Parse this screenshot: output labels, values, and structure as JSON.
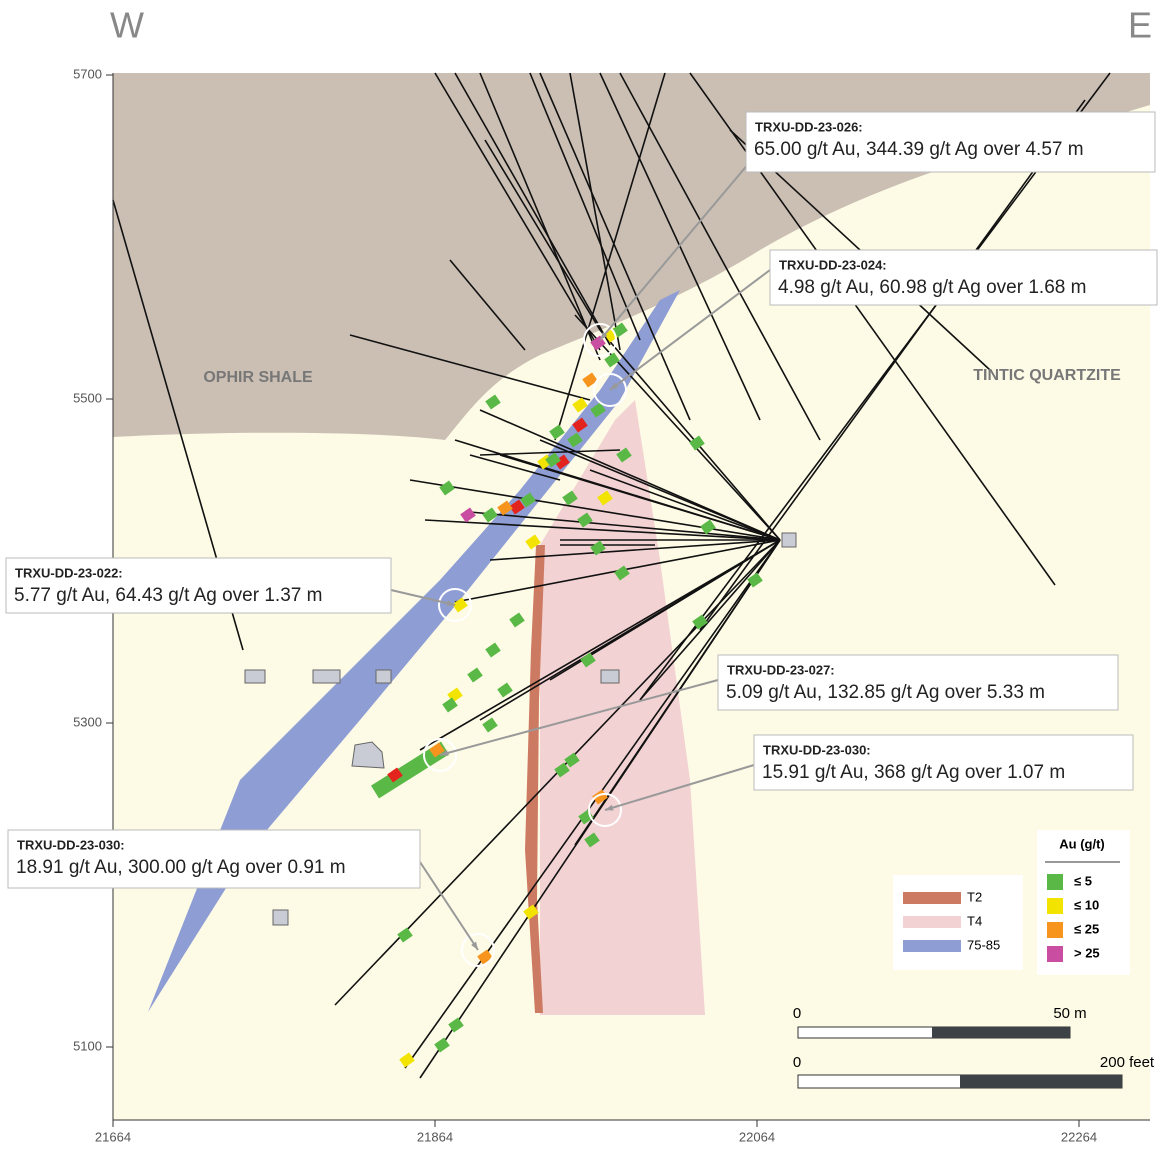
{
  "header": {
    "west": "W",
    "east": "E"
  },
  "axes": {
    "yticks": [
      5700,
      5500,
      5300,
      5100
    ],
    "xticks": [
      21664,
      21864,
      22064,
      22264
    ]
  },
  "units": [
    {
      "label": "OPHIR SHALE"
    },
    {
      "label": "TINTIC QUARTZITE"
    }
  ],
  "callouts": [
    {
      "hole": "TRXU-DD-23-026:",
      "result": "65.00 g/t Au, 344.39 g/t Ag over 4.57 m"
    },
    {
      "hole": "TRXU-DD-23-024:",
      "result": "4.98 g/t Au, 60.98 g/t Ag over 1.68 m"
    },
    {
      "hole": "TRXU-DD-23-022:",
      "result": "5.77 g/t Au, 64.43 g/t Ag over 1.37 m"
    },
    {
      "hole": "TRXU-DD-23-027:",
      "result": "5.09 g/t Au, 132.85 g/t Ag over 5.33 m"
    },
    {
      "hole": "TRXU-DD-23-030:",
      "result": "15.91 g/t Au, 368 g/t Ag over 1.07 m"
    },
    {
      "hole": "TRXU-DD-23-030:",
      "result": "18.91 g/t Au, 300.00 g/t Ag over 0.91 m"
    }
  ],
  "legend": {
    "items": [
      {
        "label": "T2",
        "color": "#cd7a63"
      },
      {
        "label": "T4",
        "color": "#f2d2d2"
      },
      {
        "label": "75-85",
        "color": "#8e9dd4"
      }
    ]
  },
  "au_legend": {
    "title": "Au (g/t)",
    "items": [
      {
        "label": "≤ 5",
        "color": "#5ab946"
      },
      {
        "label": "≤ 10",
        "color": "#f2e400"
      },
      {
        "label": "≤ 25",
        "color": "#f7941d"
      },
      {
        "label": "> 25",
        "color": "#c94da0"
      }
    ]
  },
  "scale": {
    "metric": {
      "start": "0",
      "end": "50 m"
    },
    "imperial": {
      "start": "0",
      "end": "200 feet"
    }
  }
}
